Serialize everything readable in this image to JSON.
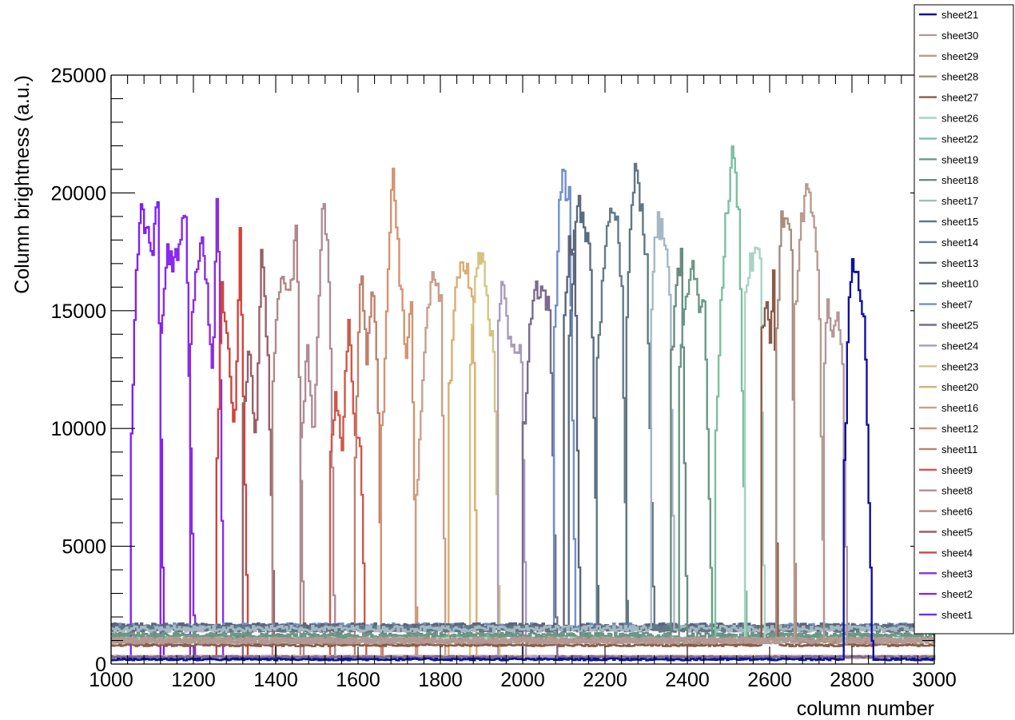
{
  "chart_data": {
    "type": "line",
    "xlabel": "column number",
    "ylabel": "Column brightness (a.u.)",
    "xlim": [
      1000,
      3000
    ],
    "ylim": [
      0,
      25000
    ],
    "x_ticks": [
      1000,
      1200,
      1400,
      1600,
      1800,
      2000,
      2200,
      2400,
      2600,
      2800,
      3000
    ],
    "y_ticks": [
      0,
      5000,
      10000,
      15000,
      20000,
      25000
    ],
    "grid": false,
    "legend_position": "right",
    "series": [
      {
        "name": "sheet21",
        "color": "#1010a0",
        "baseline": 200,
        "start": 2780,
        "end": 2850,
        "points": [
          [
            2782,
            8500
          ],
          [
            2790,
            15500
          ],
          [
            2800,
            16700
          ],
          [
            2815,
            16300
          ],
          [
            2830,
            14500
          ],
          [
            2848,
            1000
          ]
        ]
      },
      {
        "name": "sheet30",
        "color": "#b49898",
        "baseline": 1000,
        "start": 2730,
        "end": 2790,
        "points": [
          [
            2732,
            13000
          ],
          [
            2740,
            15200
          ],
          [
            2750,
            13800
          ],
          [
            2762,
            14700
          ],
          [
            2775,
            13700
          ],
          [
            2788,
            1000
          ]
        ]
      },
      {
        "name": "sheet29",
        "color": "#b89c90",
        "baseline": 1000,
        "start": 2660,
        "end": 2735,
        "points": [
          [
            2663,
            15000
          ],
          [
            2675,
            18500
          ],
          [
            2690,
            20000
          ],
          [
            2705,
            19000
          ],
          [
            2718,
            16500
          ],
          [
            2732,
            1000
          ]
        ]
      },
      {
        "name": "sheet28",
        "color": "#a88e80",
        "baseline": 1000,
        "start": 2615,
        "end": 2665,
        "points": [
          [
            2617,
            14000
          ],
          [
            2625,
            18800
          ],
          [
            2640,
            19300
          ],
          [
            2652,
            17500
          ],
          [
            2662,
            1000
          ]
        ]
      },
      {
        "name": "sheet27",
        "color": "#8c5a48",
        "baseline": 800,
        "start": 2580,
        "end": 2620,
        "points": [
          [
            2582,
            14000
          ],
          [
            2590,
            15800
          ],
          [
            2600,
            13500
          ],
          [
            2610,
            17300
          ],
          [
            2618,
            1000
          ]
        ]
      },
      {
        "name": "sheet26",
        "color": "#a8d4c4",
        "baseline": 1000,
        "start": 2540,
        "end": 2590,
        "points": [
          [
            2542,
            16000
          ],
          [
            2552,
            17000
          ],
          [
            2565,
            17500
          ],
          [
            2575,
            18300
          ],
          [
            2586,
            1000
          ]
        ]
      },
      {
        "name": "sheet22",
        "color": "#7cc0a0",
        "baseline": 1000,
        "start": 2465,
        "end": 2545,
        "points": [
          [
            2468,
            10000
          ],
          [
            2480,
            15000
          ],
          [
            2495,
            19500
          ],
          [
            2510,
            21800
          ],
          [
            2525,
            19000
          ],
          [
            2542,
            1000
          ]
        ]
      },
      {
        "name": "sheet19",
        "color": "#6a9a86",
        "baseline": 1200,
        "start": 2380,
        "end": 2465,
        "points": [
          [
            2383,
            13000
          ],
          [
            2395,
            15500
          ],
          [
            2410,
            17200
          ],
          [
            2425,
            15300
          ],
          [
            2440,
            15500
          ],
          [
            2460,
            1200
          ]
        ]
      },
      {
        "name": "sheet18",
        "color": "#6a8c80",
        "baseline": 1200,
        "start": 2360,
        "end": 2400,
        "points": [
          [
            2362,
            13000
          ],
          [
            2372,
            16500
          ],
          [
            2385,
            17200
          ],
          [
            2398,
            1200
          ]
        ]
      },
      {
        "name": "sheet17",
        "color": "#a6b8c4",
        "baseline": 1500,
        "start": 2310,
        "end": 2370,
        "points": [
          [
            2312,
            15000
          ],
          [
            2322,
            18700
          ],
          [
            2340,
            18500
          ],
          [
            2355,
            16500
          ],
          [
            2368,
            1500
          ]
        ]
      },
      {
        "name": "sheet15",
        "color": "#607884",
        "baseline": 1500,
        "start": 2250,
        "end": 2320,
        "points": [
          [
            2252,
            15000
          ],
          [
            2262,
            19500
          ],
          [
            2272,
            21000
          ],
          [
            2285,
            19500
          ],
          [
            2300,
            17000
          ],
          [
            2318,
            1500
          ]
        ]
      },
      {
        "name": "sheet14",
        "color": "#647c88",
        "baseline": 1500,
        "start": 2180,
        "end": 2255,
        "points": [
          [
            2182,
            13000
          ],
          [
            2195,
            17000
          ],
          [
            2210,
            18800
          ],
          [
            2225,
            19300
          ],
          [
            2240,
            16000
          ],
          [
            2253,
            1500
          ]
        ]
      },
      {
        "name": "sheet13",
        "color": "#5a6c80",
        "baseline": 1500,
        "start": 2110,
        "end": 2185,
        "points": [
          [
            2113,
            14000
          ],
          [
            2125,
            18000
          ],
          [
            2135,
            19600
          ],
          [
            2150,
            18700
          ],
          [
            2165,
            17000
          ],
          [
            2182,
            1500
          ]
        ]
      },
      {
        "name": "sheet10",
        "color": "#5c6478",
        "baseline": 1600,
        "start": 2100,
        "end": 2140,
        "points": [
          [
            2102,
            15000
          ],
          [
            2112,
            17800
          ],
          [
            2125,
            18200
          ],
          [
            2138,
            1600
          ]
        ]
      },
      {
        "name": "sheet7",
        "color": "#7090c8",
        "baseline": 1600,
        "start": 2075,
        "end": 2130,
        "points": [
          [
            2077,
            14000
          ],
          [
            2087,
            19000
          ],
          [
            2097,
            20600
          ],
          [
            2112,
            19800
          ],
          [
            2127,
            1600
          ]
        ]
      },
      {
        "name": "sheet25",
        "color": "#7a6c8e",
        "baseline": 300,
        "start": 2000,
        "end": 2085,
        "points": [
          [
            2003,
            10000
          ],
          [
            2015,
            14000
          ],
          [
            2030,
            15800
          ],
          [
            2050,
            15700
          ],
          [
            2065,
            15000
          ],
          [
            2082,
            300
          ]
        ]
      },
      {
        "name": "sheet24",
        "color": "#a89cbc",
        "baseline": 300,
        "start": 1940,
        "end": 2010,
        "points": [
          [
            1942,
            15000
          ],
          [
            1952,
            16500
          ],
          [
            1965,
            14000
          ],
          [
            1980,
            13400
          ],
          [
            1995,
            13700
          ],
          [
            2008,
            300
          ]
        ]
      },
      {
        "name": "sheet23",
        "color": "#d4c480",
        "baseline": 300,
        "start": 1870,
        "end": 1945,
        "points": [
          [
            1873,
            13000
          ],
          [
            1885,
            17000
          ],
          [
            1900,
            17500
          ],
          [
            1915,
            15000
          ],
          [
            1930,
            13000
          ],
          [
            1943,
            300
          ]
        ]
      },
      {
        "name": "sheet20",
        "color": "#dcae70",
        "baseline": 300,
        "start": 1820,
        "end": 1890,
        "points": [
          [
            1823,
            12000
          ],
          [
            1835,
            15500
          ],
          [
            1850,
            17200
          ],
          [
            1865,
            16500
          ],
          [
            1878,
            15500
          ],
          [
            1888,
            300
          ]
        ]
      },
      {
        "name": "sheet16",
        "color": "#c8a08c",
        "baseline": 300,
        "start": 1740,
        "end": 1815,
        "points": [
          [
            1742,
            7000
          ],
          [
            1755,
            12000
          ],
          [
            1770,
            15500
          ],
          [
            1785,
            16700
          ],
          [
            1800,
            15300
          ],
          [
            1812,
            300
          ]
        ]
      },
      {
        "name": "sheet12",
        "color": "#d49470",
        "baseline": 300,
        "start": 1655,
        "end": 1745,
        "points": [
          [
            1658,
            10000
          ],
          [
            1670,
            16000
          ],
          [
            1683,
            21700
          ],
          [
            1700,
            16500
          ],
          [
            1715,
            13000
          ],
          [
            1728,
            15500
          ],
          [
            1742,
            300
          ]
        ]
      },
      {
        "name": "sheet11",
        "color": "#c0806c",
        "baseline": 300,
        "start": 1590,
        "end": 1660,
        "points": [
          [
            1592,
            9000
          ],
          [
            1605,
            16800
          ],
          [
            1620,
            13000
          ],
          [
            1635,
            16200
          ],
          [
            1647,
            12000
          ],
          [
            1657,
            300
          ]
        ]
      },
      {
        "name": "sheet9",
        "color": "#d05848",
        "baseline": 300,
        "start": 1530,
        "end": 1620,
        "points": [
          [
            1532,
            9000
          ],
          [
            1545,
            11500
          ],
          [
            1560,
            9000
          ],
          [
            1575,
            14800
          ],
          [
            1590,
            10000
          ],
          [
            1605,
            9000
          ],
          [
            1618,
            300
          ]
        ]
      },
      {
        "name": "sheet8",
        "color": "#b08c98",
        "baseline": 300,
        "start": 1460,
        "end": 1545,
        "points": [
          [
            1462,
            9500
          ],
          [
            1475,
            13500
          ],
          [
            1490,
            9500
          ],
          [
            1505,
            16000
          ],
          [
            1515,
            20000
          ],
          [
            1530,
            16000
          ],
          [
            1542,
            300
          ]
        ]
      },
      {
        "name": "sheet6",
        "color": "#b08888",
        "baseline": 300,
        "start": 1390,
        "end": 1470,
        "points": [
          [
            1392,
            12000
          ],
          [
            1405,
            16000
          ],
          [
            1420,
            16000
          ],
          [
            1435,
            16000
          ],
          [
            1450,
            18500
          ],
          [
            1467,
            300
          ]
        ]
      },
      {
        "name": "sheet5",
        "color": "#98606a",
        "baseline": 300,
        "start": 1320,
        "end": 1400,
        "points": [
          [
            1322,
            11000
          ],
          [
            1335,
            13500
          ],
          [
            1350,
            9300
          ],
          [
            1365,
            17700
          ],
          [
            1380,
            13000
          ],
          [
            1397,
            300
          ]
        ]
      },
      {
        "name": "sheet4",
        "color": "#d0443c",
        "baseline": 300,
        "start": 1255,
        "end": 1335,
        "points": [
          [
            1257,
            9000
          ],
          [
            1268,
            15800
          ],
          [
            1283,
            14000
          ],
          [
            1298,
            9400
          ],
          [
            1312,
            18300
          ],
          [
            1332,
            300
          ]
        ]
      },
      {
        "name": "sheet3",
        "color": "#8a2ee0",
        "baseline": 300,
        "start": 1190,
        "end": 1275,
        "points": [
          [
            1192,
            14000
          ],
          [
            1205,
            17000
          ],
          [
            1218,
            17900
          ],
          [
            1232,
            16000
          ],
          [
            1245,
            12000
          ],
          [
            1258,
            20900
          ],
          [
            1272,
            300
          ]
        ]
      },
      {
        "name": "sheet2",
        "color": "#8a28f0",
        "baseline": 300,
        "start": 1120,
        "end": 1205,
        "points": [
          [
            1122,
            14000
          ],
          [
            1135,
            17500
          ],
          [
            1150,
            17000
          ],
          [
            1165,
            17800
          ],
          [
            1180,
            19300
          ],
          [
            1202,
            300
          ]
        ]
      },
      {
        "name": "sheet1",
        "color": "#8020f8",
        "baseline": 300,
        "start": 1045,
        "end": 1130,
        "points": [
          [
            1047,
            9000
          ],
          [
            1060,
            17000
          ],
          [
            1072,
            19100
          ],
          [
            1085,
            18500
          ],
          [
            1100,
            17500
          ],
          [
            1112,
            19700
          ],
          [
            1127,
            300
          ]
        ]
      }
    ]
  }
}
